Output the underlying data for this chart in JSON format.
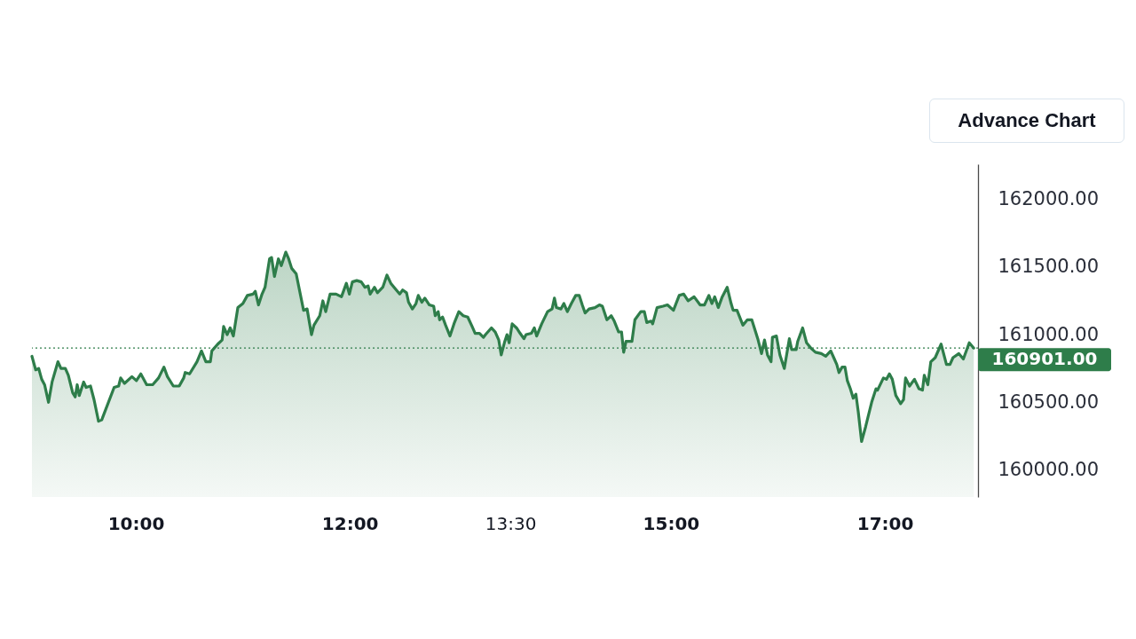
{
  "chart_data": {
    "type": "area",
    "annotations": [
      "Advance Chart"
    ],
    "x": [
      9.03,
      9.065,
      9.093,
      9.121,
      9.148,
      9.185,
      9.218,
      9.273,
      9.301,
      9.342,
      9.37,
      9.411,
      9.434,
      9.453,
      9.472,
      9.513,
      9.536,
      9.577,
      9.61,
      9.652,
      9.682,
      9.716,
      9.798,
      9.84,
      9.859,
      9.895,
      9.964,
      10.006,
      10.047,
      10.102,
      10.158,
      10.213,
      10.263,
      10.296,
      10.351,
      10.406,
      10.448,
      10.462,
      10.503,
      10.572,
      10.614,
      10.655,
      10.697,
      10.711,
      10.766,
      10.807,
      10.821,
      10.854,
      10.882,
      10.912,
      10.954,
      11.001,
      11.043,
      11.097,
      11.117,
      11.147,
      11.18,
      11.208,
      11.25,
      11.269,
      11.296,
      11.333,
      11.36,
      11.402,
      11.429,
      11.457,
      11.499,
      11.568,
      11.601,
      11.642,
      11.665,
      11.719,
      11.748,
      11.775,
      11.816,
      11.872,
      11.922,
      11.968,
      11.996,
      12.024,
      12.065,
      12.107,
      12.142,
      12.171,
      12.19,
      12.231,
      12.258,
      12.308,
      12.347,
      12.383,
      12.424,
      12.466,
      12.494,
      12.53,
      12.549,
      12.585,
      12.618,
      12.64,
      12.673,
      12.701,
      12.743,
      12.784,
      12.798,
      12.826,
      12.839,
      12.867,
      12.895,
      12.936,
      12.978,
      13.019,
      13.06,
      13.102,
      13.143,
      13.171,
      13.212,
      13.249,
      13.268,
      13.323,
      13.359,
      13.392,
      13.415,
      13.448,
      13.469,
      13.489,
      13.517,
      13.558,
      13.591,
      13.627,
      13.647,
      13.697,
      13.724,
      13.746,
      13.793,
      13.848,
      13.89,
      13.912,
      13.931,
      13.973,
      14.0,
      14.033,
      14.07,
      14.111,
      14.144,
      14.172,
      14.199,
      14.236,
      14.291,
      14.332,
      14.36,
      14.402,
      14.443,
      14.471,
      14.512,
      14.539,
      14.559,
      14.581,
      14.636,
      14.664,
      14.719,
      14.752,
      14.775,
      14.816,
      14.83,
      14.871,
      14.927,
      14.968,
      15.024,
      15.078,
      15.12,
      15.161,
      15.217,
      15.273,
      15.314,
      15.355,
      15.383,
      15.41,
      15.443,
      15.48,
      15.526,
      15.563,
      15.582,
      15.618,
      15.673,
      15.715,
      15.756,
      15.812,
      15.847,
      15.875,
      15.903,
      15.936,
      15.949,
      15.986,
      16.019,
      16.06,
      16.107,
      16.129,
      16.171,
      16.185,
      16.231,
      16.268,
      16.309,
      16.351,
      16.405,
      16.447,
      16.494,
      16.522,
      16.55,
      16.571,
      16.6,
      16.627,
      16.649,
      16.677,
      16.704,
      16.729,
      16.751,
      16.782,
      16.82,
      16.876,
      16.917,
      16.931,
      16.986,
      17.014,
      17.042,
      17.069,
      17.102,
      17.147,
      17.174,
      17.193,
      17.23,
      17.276,
      17.318,
      17.351,
      17.368,
      17.401,
      17.429,
      17.47,
      17.525,
      17.575,
      17.608,
      17.636,
      17.691,
      17.733,
      17.788,
      17.83
    ],
    "series": [
      {
        "color": "#2e7d4a",
        "values": [
          160840,
          160740,
          160750,
          160670,
          160630,
          160500,
          160650,
          160800,
          160750,
          160750,
          160700,
          160570,
          160540,
          160630,
          160550,
          160650,
          160610,
          160620,
          160520,
          160360,
          160370,
          160440,
          160610,
          160620,
          160680,
          160640,
          160690,
          160660,
          160710,
          160630,
          160630,
          160680,
          160760,
          160690,
          160620,
          160620,
          160680,
          160720,
          160710,
          160800,
          160880,
          160800,
          160800,
          160880,
          160930,
          160960,
          161060,
          161000,
          161050,
          160990,
          161200,
          161230,
          161290,
          161300,
          161320,
          161220,
          161300,
          161350,
          161560,
          161570,
          161430,
          161560,
          161510,
          161610,
          161560,
          161490,
          161450,
          161180,
          161190,
          161000,
          161070,
          161140,
          161250,
          161170,
          161300,
          161300,
          161280,
          161380,
          161300,
          161390,
          161400,
          161390,
          161350,
          161360,
          161300,
          161350,
          161310,
          161350,
          161440,
          161380,
          161340,
          161300,
          161330,
          161310,
          161240,
          161190,
          161230,
          161290,
          161240,
          161270,
          161220,
          161210,
          161140,
          161170,
          161110,
          161130,
          161070,
          160990,
          161090,
          161170,
          161140,
          161130,
          161060,
          161010,
          161010,
          160980,
          161000,
          161050,
          161020,
          160960,
          160850,
          160950,
          161000,
          160940,
          161080,
          161050,
          161010,
          160970,
          161000,
          161010,
          161050,
          160990,
          161080,
          161170,
          161190,
          161270,
          161200,
          161190,
          161230,
          161170,
          161230,
          161290,
          161290,
          161220,
          161160,
          161190,
          161200,
          161220,
          161210,
          161110,
          161140,
          161100,
          161020,
          161020,
          160870,
          160950,
          160950,
          161110,
          161170,
          161170,
          161090,
          161100,
          161080,
          161200,
          161210,
          161220,
          161180,
          161290,
          161300,
          161250,
          161280,
          161220,
          161220,
          161290,
          161230,
          161280,
          161200,
          161280,
          161350,
          161230,
          161180,
          161180,
          161070,
          161110,
          161110,
          160970,
          160860,
          160960,
          160850,
          160800,
          160980,
          160990,
          160850,
          160750,
          160970,
          160890,
          160890,
          160950,
          161050,
          160940,
          160900,
          160870,
          160860,
          160840,
          160880,
          160830,
          160780,
          160720,
          160760,
          160760,
          160660,
          160600,
          160530,
          160560,
          160430,
          160210,
          160320,
          160500,
          160600,
          160590,
          160680,
          160670,
          160710,
          160670,
          160550,
          160490,
          160520,
          160680,
          160620,
          160670,
          160600,
          160590,
          160700,
          160630,
          160800,
          160830,
          160930,
          160780,
          160780,
          160830,
          160860,
          160820,
          160940,
          160901
        ]
      }
    ],
    "xlim": [
      9.03,
      17.87
    ],
    "xticks": [
      {
        "value": 10,
        "label": "10:00"
      },
      {
        "value": 12,
        "label": "12:00"
      },
      {
        "value": 13.5,
        "label": "13:30"
      },
      {
        "value": 15,
        "label": "15:00"
      },
      {
        "value": 17,
        "label": "17:00"
      }
    ],
    "ylim": [
      159800,
      162260
    ],
    "yticks": [
      {
        "value": 160000,
        "label": "160000.00"
      },
      {
        "value": 160500,
        "label": "160500.00"
      },
      {
        "value": 161000,
        "label": "161000.00"
      },
      {
        "value": 161500,
        "label": "161500.00"
      },
      {
        "value": 162000,
        "label": "162000.00"
      }
    ],
    "ref_lines": [
      {
        "axis": "y",
        "value": 160901,
        "label": "160901.00",
        "color": "#2e7d4a",
        "line_style": "dotted"
      }
    ]
  }
}
